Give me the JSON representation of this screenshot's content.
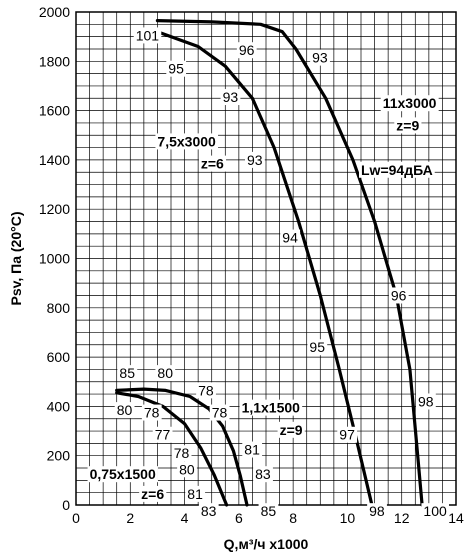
{
  "chart_data": {
    "type": "line",
    "title": "",
    "xlabel": "Q,м³/ч x1000",
    "ylabel": "Psv, Па (20°C)",
    "xlim": [
      0,
      14
    ],
    "ylim": [
      0,
      2000
    ],
    "x_ticks": [
      0,
      2,
      4,
      6,
      8,
      10,
      12,
      14
    ],
    "y_ticks": [
      0,
      200,
      400,
      600,
      800,
      1000,
      1200,
      1400,
      1600,
      1800,
      2000
    ],
    "grid": true,
    "series": [
      {
        "name": "11x3000 z=9",
        "points": [
          [
            3,
            1965
          ],
          [
            5,
            1960
          ],
          [
            6.8,
            1950
          ],
          [
            7.6,
            1920
          ],
          [
            8.1,
            1850
          ],
          [
            9.2,
            1650
          ],
          [
            10.2,
            1400
          ],
          [
            11.0,
            1150
          ],
          [
            11.8,
            850
          ],
          [
            12.3,
            550
          ],
          [
            12.55,
            250
          ],
          [
            12.75,
            0
          ]
        ]
      },
      {
        "name": "7,5x3000 z=6",
        "points": [
          [
            3,
            1920
          ],
          [
            4.5,
            1860
          ],
          [
            5.5,
            1780
          ],
          [
            6.5,
            1650
          ],
          [
            7.3,
            1450
          ],
          [
            8.2,
            1150
          ],
          [
            9.0,
            850
          ],
          [
            9.7,
            550
          ],
          [
            10.3,
            280
          ],
          [
            10.9,
            0
          ]
        ]
      },
      {
        "name": "1,1x1500 z=9",
        "points": [
          [
            1.5,
            465
          ],
          [
            2.5,
            470
          ],
          [
            3.3,
            465
          ],
          [
            4.2,
            440
          ],
          [
            4.9,
            390
          ],
          [
            5.4,
            320
          ],
          [
            5.8,
            220
          ],
          [
            6.05,
            120
          ],
          [
            6.3,
            0
          ]
        ]
      },
      {
        "name": "0,75x1500 z=6",
        "points": [
          [
            1.5,
            455
          ],
          [
            2.3,
            440
          ],
          [
            3.2,
            400
          ],
          [
            4.0,
            330
          ],
          [
            4.6,
            230
          ],
          [
            5.1,
            120
          ],
          [
            5.55,
            0
          ]
        ]
      }
    ],
    "annotations": [
      {
        "text": "101",
        "x": 2.2,
        "y": 1905
      },
      {
        "text": "96",
        "x": 6.0,
        "y": 1845
      },
      {
        "text": "93",
        "x": 8.7,
        "y": 1815
      },
      {
        "text": "95",
        "x": 3.4,
        "y": 1770
      },
      {
        "text": "93",
        "x": 5.4,
        "y": 1655
      },
      {
        "text": "11x3000",
        "x": 11.3,
        "y": 1630,
        "bold": true
      },
      {
        "text": "z=9",
        "x": 11.8,
        "y": 1540,
        "bold": true
      },
      {
        "text": "7,5x3000",
        "x": 3.0,
        "y": 1475,
        "bold": true
      },
      {
        "text": "z=6",
        "x": 4.6,
        "y": 1385,
        "bold": true
      },
      {
        "text": "93",
        "x": 6.3,
        "y": 1400
      },
      {
        "text": "Lw=94дБА",
        "x": 10.5,
        "y": 1360,
        "bold": true
      },
      {
        "text": "94",
        "x": 7.6,
        "y": 1085
      },
      {
        "text": "96",
        "x": 11.6,
        "y": 850
      },
      {
        "text": "95",
        "x": 8.6,
        "y": 640
      },
      {
        "text": "85",
        "x": 1.6,
        "y": 535
      },
      {
        "text": "80",
        "x": 3.0,
        "y": 535
      },
      {
        "text": "78",
        "x": 4.5,
        "y": 465
      },
      {
        "text": "98",
        "x": 12.6,
        "y": 420
      },
      {
        "text": "1,1x1500",
        "x": 6.1,
        "y": 395,
        "bold": true
      },
      {
        "text": "80",
        "x": 1.5,
        "y": 385
      },
      {
        "text": "78",
        "x": 2.5,
        "y": 375
      },
      {
        "text": "78",
        "x": 5.0,
        "y": 375
      },
      {
        "text": "z=9",
        "x": 7.5,
        "y": 305,
        "bold": true
      },
      {
        "text": "97",
        "x": 9.7,
        "y": 285
      },
      {
        "text": "77",
        "x": 2.9,
        "y": 285
      },
      {
        "text": "81",
        "x": 6.2,
        "y": 225
      },
      {
        "text": "78",
        "x": 3.6,
        "y": 210
      },
      {
        "text": "80",
        "x": 3.8,
        "y": 145
      },
      {
        "text": "0,75x1500",
        "x": 0.5,
        "y": 125,
        "bold": true
      },
      {
        "text": "83",
        "x": 6.6,
        "y": 125
      },
      {
        "text": "z=6",
        "x": 2.4,
        "y": 45,
        "bold": true
      },
      {
        "text": "81",
        "x": 4.1,
        "y": 45
      },
      {
        "text": "83",
        "x": 4.6,
        "y": -25
      },
      {
        "text": "85",
        "x": 6.8,
        "y": -25
      },
      {
        "text": "98",
        "x": 10.8,
        "y": -25
      },
      {
        "text": "100",
        "x": 12.8,
        "y": -25
      }
    ]
  }
}
